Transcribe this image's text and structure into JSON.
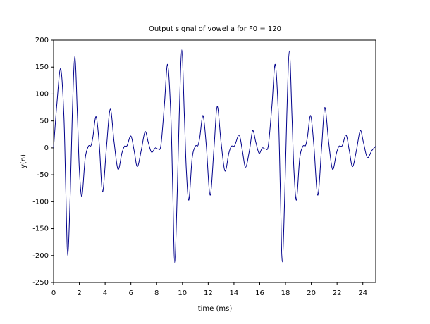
{
  "chart_data": {
    "type": "line",
    "title": "Output signal of vowel a for F0 = 120",
    "x_label": "time (ms)",
    "y_label": "y(n)",
    "color": "#00008b",
    "x": [
      0,
      0.25,
      0.55,
      0.8,
      0.95,
      1.1,
      1.3,
      1.45,
      1.65,
      1.85,
      2.0,
      2.2,
      2.45,
      2.7,
      2.9,
      3.05,
      3.3,
      3.55,
      3.8,
      4.1,
      4.4,
      4.7,
      5.0,
      5.3,
      5.5,
      5.7,
      6.0,
      6.25,
      6.5,
      6.8,
      7.1,
      7.35,
      7.6,
      7.9,
      8.1,
      8.33,
      8.6,
      8.85,
      9.1,
      9.25,
      9.4,
      9.6,
      9.75,
      9.95,
      10.15,
      10.3,
      10.5,
      10.75,
      11.0,
      11.2,
      11.35,
      11.6,
      11.85,
      12.15,
      12.45,
      12.7,
      13.0,
      13.3,
      13.6,
      13.8,
      14.05,
      14.4,
      14.65,
      14.9,
      15.2,
      15.45,
      15.7,
      15.95,
      16.2,
      16.45,
      16.67,
      16.95,
      17.2,
      17.45,
      17.6,
      17.75,
      17.95,
      18.1,
      18.3,
      18.5,
      18.65,
      18.85,
      19.1,
      19.35,
      19.55,
      19.7,
      19.95,
      20.2,
      20.5,
      20.8,
      21.05,
      21.35,
      21.65,
      21.95,
      22.15,
      22.4,
      22.7,
      22.95,
      23.2,
      23.5,
      23.8,
      24.05,
      24.35,
      24.7,
      25
    ],
    "values": [
      0,
      80,
      147,
      60,
      -80,
      -200,
      -80,
      60,
      170,
      60,
      -40,
      -90,
      -20,
      3,
      4,
      20,
      58,
      5,
      -82,
      0,
      72,
      10,
      -40,
      -10,
      3,
      4,
      22,
      -5,
      -35,
      -5,
      30,
      10,
      -8,
      0,
      -2,
      5,
      80,
      155,
      60,
      -80,
      -213,
      -80,
      60,
      182,
      60,
      -40,
      -97,
      -20,
      3,
      4,
      20,
      60,
      5,
      -88,
      0,
      77,
      10,
      -43,
      -10,
      3,
      4,
      24,
      -5,
      -36,
      -5,
      32,
      10,
      -10,
      0,
      -2,
      5,
      80,
      155,
      60,
      -80,
      -212,
      -80,
      60,
      180,
      60,
      -40,
      -97,
      -20,
      3,
      4,
      20,
      60,
      5,
      -88,
      0,
      75,
      10,
      -40,
      -10,
      3,
      4,
      24,
      -5,
      -35,
      -5,
      32,
      10,
      -18,
      -5,
      3
    ],
    "xlim": [
      0,
      25
    ],
    "xticks": [
      0,
      2,
      4,
      6,
      8,
      10,
      12,
      14,
      16,
      18,
      20,
      22,
      24
    ],
    "ylim": [
      -250,
      200
    ],
    "yticks": [
      -250,
      -200,
      -150,
      -100,
      -50,
      0,
      50,
      100,
      150,
      200
    ]
  }
}
